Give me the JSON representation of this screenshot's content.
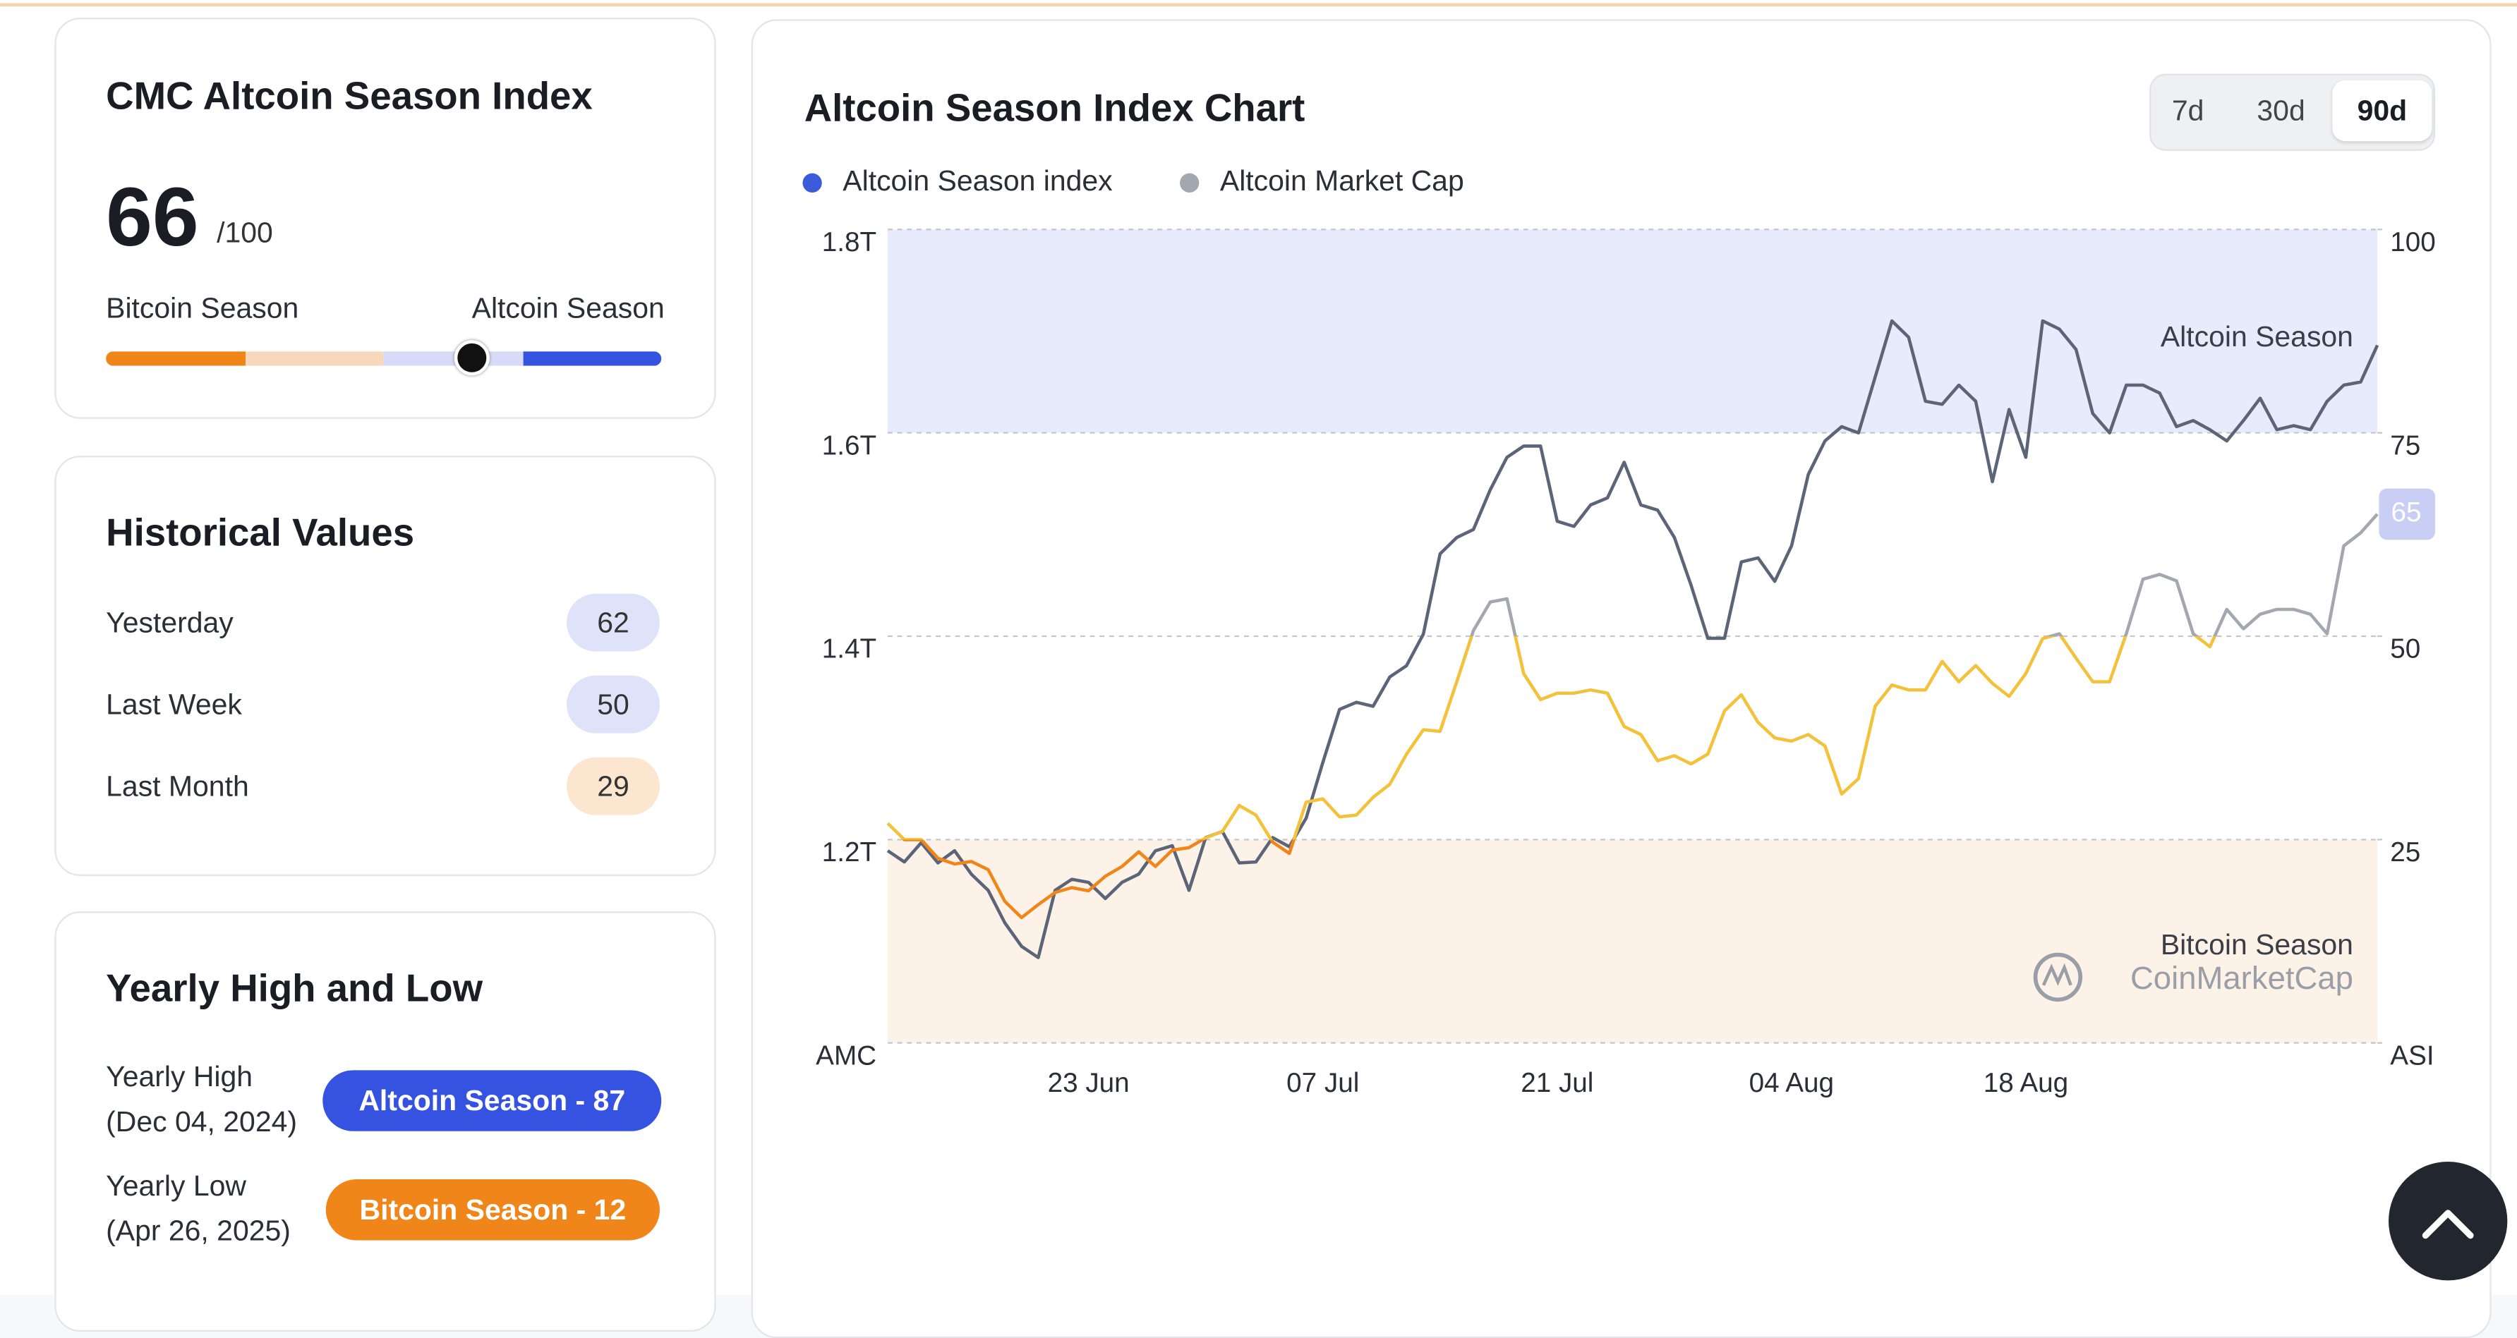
{
  "summary": {
    "title": "CMC Altcoin Season Index",
    "value": 66,
    "max": 100,
    "max_label": "/100",
    "left_label": "Bitcoin Season",
    "right_label": "Altcoin Season"
  },
  "historical": {
    "title": "Historical Values",
    "rows": [
      {
        "label": "Yesterday",
        "value": 62,
        "color": "#dfe3fa"
      },
      {
        "label": "Last Week",
        "value": 50,
        "color": "#dfe3fa"
      },
      {
        "label": "Last Month",
        "value": 29,
        "color": "#fde6cf"
      }
    ]
  },
  "yearly": {
    "title": "Yearly High and Low",
    "rows": [
      {
        "label": "Yearly High",
        "date": "(Dec 04, 2024)",
        "badge": "Altcoin Season - 87",
        "color": "#3553e0"
      },
      {
        "label": "Yearly Low",
        "date": "(Apr 26, 2025)",
        "badge": "Bitcoin Season - 12",
        "color": "#f0861a"
      }
    ]
  },
  "tabs": [
    "7d",
    "30d",
    "90d"
  ],
  "active_tab": 2,
  "chart_data": {
    "type": "line",
    "title": "Altcoin Season Index Chart",
    "categories": [
      null,
      null,
      null,
      null,
      null,
      null,
      null,
      null,
      null,
      null,
      null,
      null,
      "23 Jun",
      null,
      null,
      null,
      null,
      null,
      null,
      null,
      null,
      null,
      null,
      null,
      null,
      null,
      "07 Jul",
      null,
      null,
      null,
      null,
      null,
      null,
      null,
      null,
      null,
      null,
      null,
      null,
      null,
      "21 Jul",
      null,
      null,
      null,
      null,
      null,
      null,
      null,
      null,
      null,
      null,
      null,
      null,
      null,
      "04 Aug",
      null,
      null,
      null,
      null,
      null,
      null,
      null,
      null,
      null,
      null,
      null,
      null,
      null,
      "18 Aug",
      null,
      null,
      null,
      null,
      null,
      null,
      null,
      null,
      null,
      null,
      null,
      null,
      null,
      null,
      null,
      null,
      null,
      null,
      null,
      null,
      null
    ],
    "series": [
      {
        "name": "Altcoin Season index",
        "legend_color": "#3b5bdb",
        "axis": "y2",
        "values": [
          27,
          25,
          25,
          22.7,
          22,
          22.3,
          21.3,
          17.4,
          15.4,
          17,
          18.5,
          19.1,
          18.7,
          20.5,
          21.7,
          23.5,
          21.7,
          23.7,
          24,
          25.2,
          26,
          29.2,
          28,
          24.7,
          23.3,
          29.6,
          30,
          27.8,
          28,
          30.2,
          31.8,
          35.5,
          38.5,
          38.3,
          44.4,
          50.7,
          54.2,
          54.6,
          45.4,
          42.2,
          43,
          43,
          43.4,
          43,
          38.9,
          37.9,
          34.7,
          35.3,
          34.3,
          35.5,
          40.8,
          42.8,
          39.4,
          37.5,
          37.1,
          37.9,
          36.5,
          30.6,
          32.5,
          41.4,
          44,
          43.4,
          43.4,
          46.9,
          44.4,
          46.4,
          44.2,
          42.6,
          45.4,
          49.7,
          50.3,
          47.3,
          44.4,
          44.4,
          50.3,
          57,
          57.6,
          56.8,
          50.3,
          48.7,
          53.3,
          50.9,
          52.7,
          53.3,
          53.3,
          52.7,
          50.3,
          61.1,
          62.7,
          65
        ]
      },
      {
        "name": "Altcoin Market Cap",
        "legend_color": "#a3a7b0",
        "color": "#5c6578",
        "values": [
          1189000000000.0,
          1178000000000.0,
          1197000000000.0,
          1177000000000.0,
          1189000000000.0,
          1166000000000.0,
          1150000000000.0,
          1118000000000.0,
          1095000000000.0,
          1084000000000.0,
          1150000000000.0,
          1161000000000.0,
          1158000000000.0,
          1142000000000.0,
          1158000000000.0,
          1166000000000.0,
          1189000000000.0,
          1194000000000.0,
          1150000000000.0,
          1202000000000.0,
          1208000000000.0,
          1177000000000.0,
          1178000000000.0,
          1202000000000.0,
          1193000000000.0,
          1221000000000.0,
          1276000000000.0,
          1328000000000.0,
          1335000000000.0,
          1331000000000.0,
          1360000000000.0,
          1371000000000.0,
          1402000000000.0,
          1481000000000.0,
          1497000000000.0,
          1505000000000.0,
          1544000000000.0,
          1576000000000.0,
          1587000000000.0,
          1587000000000.0,
          1513000000000.0,
          1508000000000.0,
          1529000000000.0,
          1536000000000.0,
          1571000000000.0,
          1529000000000.0,
          1524000000000.0,
          1497000000000.0,
          1450000000000.0,
          1398000000000.0,
          1398000000000.0,
          1473000000000.0,
          1477000000000.0,
          1454000000000.0,
          1489000000000.0,
          1559000000000.0,
          1592000000000.0,
          1606000000000.0,
          1600000000000.0,
          1655000000000.0,
          1710000000000.0,
          1694000000000.0,
          1631000000000.0,
          1628000000000.0,
          1647000000000.0,
          1631000000000.0,
          1552000000000.0,
          1623000000000.0,
          1576000000000.0,
          1710000000000.0,
          1702000000000.0,
          1682000000000.0,
          1619000000000.0,
          1600000000000.0,
          1647000000000.0,
          1647000000000.0,
          1639000000000.0,
          1606000000000.0,
          1612000000000.0,
          1603000000000.0,
          1592000000000.0,
          1612000000000.0,
          1634000000000.0,
          1603000000000.0,
          1607000000000.0,
          1603000000000.0,
          1631000000000.0,
          1647000000000.0,
          1650000000000.0,
          1686000000000.0
        ]
      }
    ],
    "zones": [
      {
        "to": 25,
        "color": "#f0861a"
      },
      {
        "to": 50,
        "color": "#f3c13a"
      },
      {
        "to": 100,
        "color": "#a3a7b0"
      }
    ],
    "bands": [
      {
        "label": "Altcoin Season",
        "from": 75,
        "to": 100,
        "color": "#e8ebfc"
      },
      {
        "label": "Bitcoin Season",
        "from": 0,
        "to": 25,
        "color": "#fdf2e7"
      }
    ],
    "ylim": [
      1000000000000.0,
      1800000000000.0
    ],
    "yticks": [
      {
        "value": 1000000000000.0,
        "label": "AMC"
      },
      {
        "value": 1200000000000.0,
        "label": "1.2T"
      },
      {
        "value": 1400000000000.0,
        "label": "1.4T"
      },
      {
        "value": 1600000000000.0,
        "label": "1.6T"
      },
      {
        "value": 1800000000000.0,
        "label": "1.8T"
      }
    ],
    "y2lim": [
      0,
      100
    ],
    "y2ticks": [
      {
        "value": 0,
        "label": "ASI"
      },
      25,
      50,
      75,
      100
    ],
    "grid": true,
    "watermark": "CoinMarketCap"
  }
}
